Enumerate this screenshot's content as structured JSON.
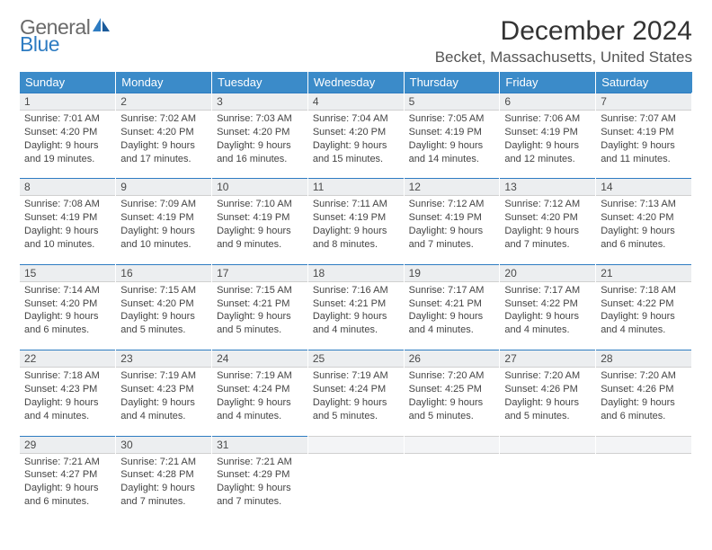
{
  "logo": {
    "line1": "General",
    "line2": "Blue"
  },
  "title": "December 2024",
  "location": "Becket, Massachusetts, United States",
  "colors": {
    "header_bg": "#3b8bc9",
    "header_text": "#ffffff",
    "daynum_bg": "#eceef0",
    "accent": "#2e7cc2",
    "text": "#333333"
  },
  "weekdays": [
    "Sunday",
    "Monday",
    "Tuesday",
    "Wednesday",
    "Thursday",
    "Friday",
    "Saturday"
  ],
  "weeks": [
    [
      {
        "n": "1",
        "sr": "7:01 AM",
        "ss": "4:20 PM",
        "dl": "9 hours and 19 minutes."
      },
      {
        "n": "2",
        "sr": "7:02 AM",
        "ss": "4:20 PM",
        "dl": "9 hours and 17 minutes."
      },
      {
        "n": "3",
        "sr": "7:03 AM",
        "ss": "4:20 PM",
        "dl": "9 hours and 16 minutes."
      },
      {
        "n": "4",
        "sr": "7:04 AM",
        "ss": "4:20 PM",
        "dl": "9 hours and 15 minutes."
      },
      {
        "n": "5",
        "sr": "7:05 AM",
        "ss": "4:19 PM",
        "dl": "9 hours and 14 minutes."
      },
      {
        "n": "6",
        "sr": "7:06 AM",
        "ss": "4:19 PM",
        "dl": "9 hours and 12 minutes."
      },
      {
        "n": "7",
        "sr": "7:07 AM",
        "ss": "4:19 PM",
        "dl": "9 hours and 11 minutes."
      }
    ],
    [
      {
        "n": "8",
        "sr": "7:08 AM",
        "ss": "4:19 PM",
        "dl": "9 hours and 10 minutes."
      },
      {
        "n": "9",
        "sr": "7:09 AM",
        "ss": "4:19 PM",
        "dl": "9 hours and 10 minutes."
      },
      {
        "n": "10",
        "sr": "7:10 AM",
        "ss": "4:19 PM",
        "dl": "9 hours and 9 minutes."
      },
      {
        "n": "11",
        "sr": "7:11 AM",
        "ss": "4:19 PM",
        "dl": "9 hours and 8 minutes."
      },
      {
        "n": "12",
        "sr": "7:12 AM",
        "ss": "4:19 PM",
        "dl": "9 hours and 7 minutes."
      },
      {
        "n": "13",
        "sr": "7:12 AM",
        "ss": "4:20 PM",
        "dl": "9 hours and 7 minutes."
      },
      {
        "n": "14",
        "sr": "7:13 AM",
        "ss": "4:20 PM",
        "dl": "9 hours and 6 minutes."
      }
    ],
    [
      {
        "n": "15",
        "sr": "7:14 AM",
        "ss": "4:20 PM",
        "dl": "9 hours and 6 minutes."
      },
      {
        "n": "16",
        "sr": "7:15 AM",
        "ss": "4:20 PM",
        "dl": "9 hours and 5 minutes."
      },
      {
        "n": "17",
        "sr": "7:15 AM",
        "ss": "4:21 PM",
        "dl": "9 hours and 5 minutes."
      },
      {
        "n": "18",
        "sr": "7:16 AM",
        "ss": "4:21 PM",
        "dl": "9 hours and 4 minutes."
      },
      {
        "n": "19",
        "sr": "7:17 AM",
        "ss": "4:21 PM",
        "dl": "9 hours and 4 minutes."
      },
      {
        "n": "20",
        "sr": "7:17 AM",
        "ss": "4:22 PM",
        "dl": "9 hours and 4 minutes."
      },
      {
        "n": "21",
        "sr": "7:18 AM",
        "ss": "4:22 PM",
        "dl": "9 hours and 4 minutes."
      }
    ],
    [
      {
        "n": "22",
        "sr": "7:18 AM",
        "ss": "4:23 PM",
        "dl": "9 hours and 4 minutes."
      },
      {
        "n": "23",
        "sr": "7:19 AM",
        "ss": "4:23 PM",
        "dl": "9 hours and 4 minutes."
      },
      {
        "n": "24",
        "sr": "7:19 AM",
        "ss": "4:24 PM",
        "dl": "9 hours and 4 minutes."
      },
      {
        "n": "25",
        "sr": "7:19 AM",
        "ss": "4:24 PM",
        "dl": "9 hours and 5 minutes."
      },
      {
        "n": "26",
        "sr": "7:20 AM",
        "ss": "4:25 PM",
        "dl": "9 hours and 5 minutes."
      },
      {
        "n": "27",
        "sr": "7:20 AM",
        "ss": "4:26 PM",
        "dl": "9 hours and 5 minutes."
      },
      {
        "n": "28",
        "sr": "7:20 AM",
        "ss": "4:26 PM",
        "dl": "9 hours and 6 minutes."
      }
    ],
    [
      {
        "n": "29",
        "sr": "7:21 AM",
        "ss": "4:27 PM",
        "dl": "9 hours and 6 minutes."
      },
      {
        "n": "30",
        "sr": "7:21 AM",
        "ss": "4:28 PM",
        "dl": "9 hours and 7 minutes."
      },
      {
        "n": "31",
        "sr": "7:21 AM",
        "ss": "4:29 PM",
        "dl": "9 hours and 7 minutes."
      },
      null,
      null,
      null,
      null
    ]
  ],
  "labels": {
    "sunrise": "Sunrise:",
    "sunset": "Sunset:",
    "daylight": "Daylight:"
  }
}
